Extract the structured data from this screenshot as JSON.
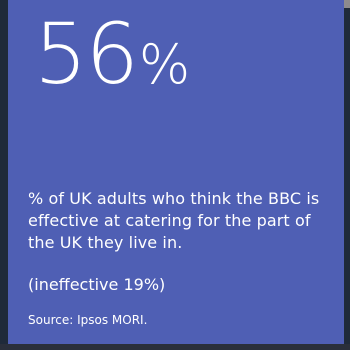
{
  "stat": {
    "value": "56",
    "unit": "%"
  },
  "description": "% of UK adults who think the BBC is effective at catering for the part of the UK they live in.",
  "ineffective": "(ineffective 19%)",
  "source": "Source: Ipsos MORI.",
  "colors": {
    "card_background": "#4f5fb4",
    "text": "#ffffff"
  }
}
